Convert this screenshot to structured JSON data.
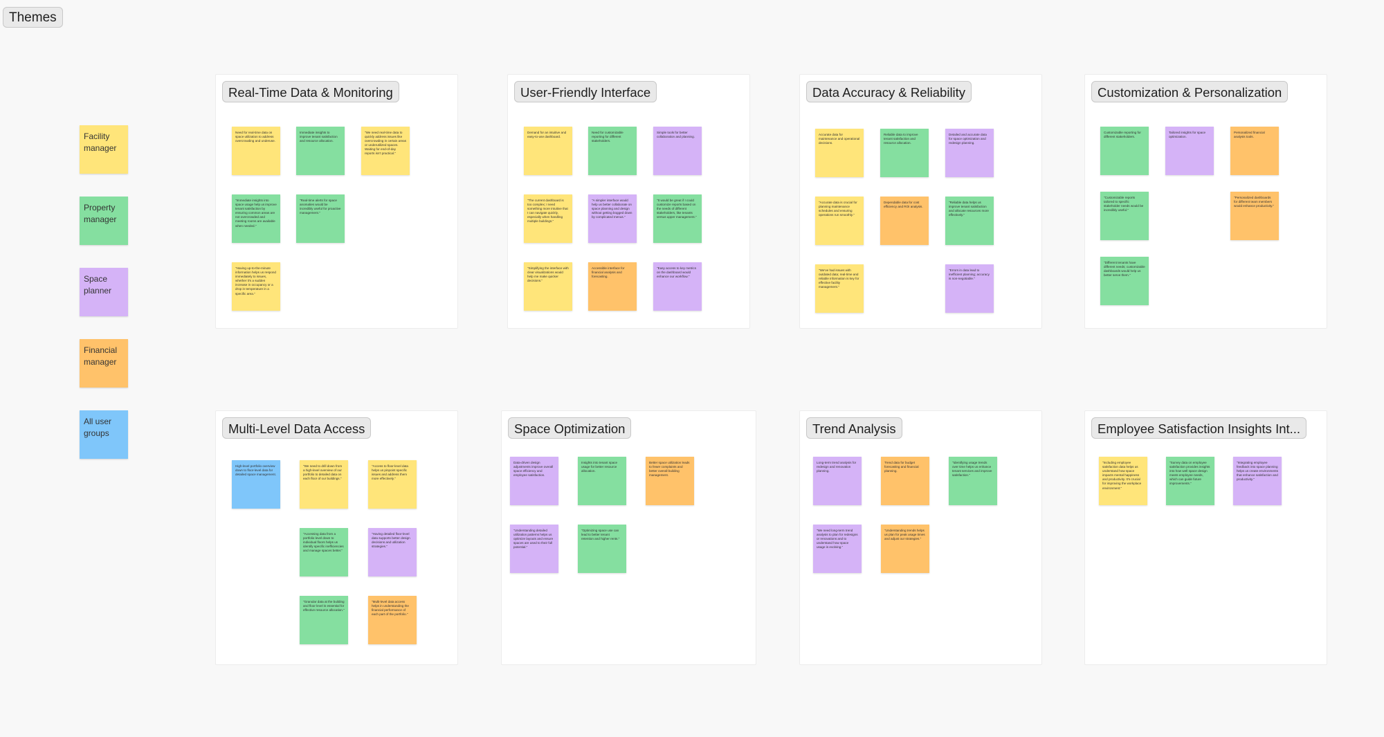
{
  "page": {
    "title": "Themes"
  },
  "colors": {
    "yellow": "#ffe57a",
    "green": "#85dfa0",
    "purple": "#d5b3f7",
    "orange": "#ffc26a",
    "blue": "#7fc6fa",
    "canvas": "#f8f8f8"
  },
  "legend": [
    {
      "label": "Facility manager",
      "color": "yellow"
    },
    {
      "label": "Property manager",
      "color": "green"
    },
    {
      "label": "Space planner",
      "color": "purple"
    },
    {
      "label": "Financial manager",
      "color": "orange"
    },
    {
      "label": "All user groups",
      "color": "blue"
    }
  ],
  "sections": [
    {
      "title": "Real-Time Data & Monitoring",
      "notes": [
        {
          "color": "yellow",
          "text": "Need for real-time data on space utilization to address overcrowding and underuse."
        },
        {
          "color": "green",
          "text": "Immediate insights to improve tenant satisfaction and resource allocation."
        },
        {
          "color": "yellow",
          "text": "\"We need real-time data to quickly address issues like overcrowding in certain areas or underutilized spaces. Waiting for end-of-day reports isn't practical.\""
        },
        {
          "color": "green",
          "text": "\"Immediate insights into space usage help us improve tenant satisfaction by ensuring common areas are not overcrowded and meeting rooms are available when needed.\""
        },
        {
          "color": "green",
          "text": "\"Real-time alerts for space anomalies would be incredibly useful for proactive management.\""
        },
        {
          "color": "yellow",
          "text": "\"Having up-to-the-minute information helps us respond immediately to issues, whether it's a sudden increase in occupancy or a drop in temperature in a specific area.\""
        }
      ]
    },
    {
      "title": "User-Friendly Interface",
      "notes": [
        {
          "color": "yellow",
          "text": "Demand for an intuitive and easy-to-use dashboard."
        },
        {
          "color": "green",
          "text": "Need for customizable reporting for different stakeholders."
        },
        {
          "color": "purple",
          "text": "Simple tools for better collaboration and planning."
        },
        {
          "color": "yellow",
          "text": "\"The current dashboard is too complex; I need something more intuitive that I can navigate quickly, especially when handling multiple buildings.\""
        },
        {
          "color": "purple",
          "text": "\"A simpler interface would help us better collaborate on space planning and design without getting bogged down by complicated menus.\""
        },
        {
          "color": "green",
          "text": "\"It would be great if I could customize reports based on the needs of different stakeholders, like tenants versus upper management.\""
        },
        {
          "color": "yellow",
          "text": "\"Simplifying the interface with clear visualizations would help me make quicker decisions.\""
        },
        {
          "color": "orange",
          "text": "Accessible interface for financial analysis and forecasting."
        },
        {
          "color": "purple",
          "text": "\"Easy access to key metrics on the dashboard would enhance our workflow.\""
        }
      ]
    },
    {
      "title": "Data Accuracy & Reliability",
      "notes": [
        {
          "color": "yellow",
          "text": "Accurate data for maintenance and operational decisions."
        },
        {
          "color": "green",
          "text": "Reliable data to improve tenant satisfaction and resource allocation."
        },
        {
          "color": "purple",
          "text": "Detailed and accurate data for space optimization and redesign planning."
        },
        {
          "color": "yellow",
          "text": "\"Accurate data is crucial for planning maintenance schedules and ensuring operations run smoothly.\""
        },
        {
          "color": "orange",
          "text": "Dependable data for cost efficiency and ROI analysis."
        },
        {
          "color": "green",
          "text": "\"Reliable data helps us improve tenant satisfaction and allocate resources more effectively.\""
        },
        {
          "color": "yellow",
          "text": "\"We've had issues with outdated data; real-time and reliable information is key for effective facility management.\""
        },
        {
          "color": "purple",
          "text": "\"Errors in data lead to inefficient planning; accuracy is non-negotiable.\""
        }
      ]
    },
    {
      "title": "Customization & Personalization",
      "notes": [
        {
          "color": "green",
          "text": "Customizable reporting for different stakeholders."
        },
        {
          "color": "purple",
          "text": "Tailored insights for space optimization."
        },
        {
          "color": "orange",
          "text": "Personalized financial analysis tools."
        },
        {
          "color": "green",
          "text": "\"Customizable reports tailored to specific stakeholder needs would be incredibly useful.\""
        },
        {
          "color": "orange",
          "text": "\"Personalized dashboards for different team members would enhance productivity.\""
        },
        {
          "color": "green",
          "text": "\"Different tenants have different needs; customizable dashboards would help us better serve them.\""
        }
      ]
    },
    {
      "title": "Multi-Level Data Access",
      "notes": [
        {
          "color": "blue",
          "text": "High-level portfolio overview down to floor-level data for detailed space management."
        },
        {
          "color": "yellow",
          "text": "\"We need to drill down from a high-level overview of our portfolio to detailed data on each floor of our buildings.\""
        },
        {
          "color": "yellow",
          "text": "\"Access to floor-level data helps us pinpoint specific issues and address them more effectively.\""
        },
        {
          "color": "green",
          "text": "\"Accessing data from a portfolio level down to individual floors helps us identify specific inefficiencies and manage spaces better.\""
        },
        {
          "color": "purple",
          "text": "\"Having detailed floor-level data supports better design decisions and utilization strategies.\""
        },
        {
          "color": "green",
          "text": "\"Granular data at the building and floor level is essential for effective resource allocation.\""
        },
        {
          "color": "orange",
          "text": "\"Multi-level data access helps in understanding the financial performance of each part of the portfolio.\""
        }
      ]
    },
    {
      "title": "Space Optimization",
      "notes": [
        {
          "color": "purple",
          "text": "Data-driven design adjustments improve overall space efficiency and employee satisfaction."
        },
        {
          "color": "green",
          "text": "Insights into tenant space usage for better resource allocation."
        },
        {
          "color": "orange",
          "text": "Better space utilization leads to fewer complaints and better overall building management."
        },
        {
          "color": "purple",
          "text": "\"Understanding detailed utilization patterns helps us optimize layouts and ensure spaces are used to their full potential.\""
        },
        {
          "color": "green",
          "text": "\"Optimizing space use can lead to better tenant retention and higher rents.\""
        }
      ]
    },
    {
      "title": "Trend Analysis",
      "notes": [
        {
          "color": "purple",
          "text": "Long-term trend analysis for redesign and renovation planning."
        },
        {
          "color": "orange",
          "text": "Trend data for budget forecasting and financial planning."
        },
        {
          "color": "green",
          "text": "\"Identifying usage trends over time helps us enhance tenant services and improve satisfaction.\""
        },
        {
          "color": "purple",
          "text": "\"We need long-term trend analysis to plan for redesigns or renovations and to understand how space usage is evolving.\""
        },
        {
          "color": "orange",
          "text": "\"Understanding trends helps us plan for peak usage times and adjust our strategies.\""
        }
      ]
    },
    {
      "title": "Employee Satisfaction Insights Int...",
      "notes": [
        {
          "color": "yellow",
          "text": "\"Including employee satisfaction data helps us understand how space impacts mental happiness and productivity. It's crucial for improving the workplace environment.\""
        },
        {
          "color": "green",
          "text": "\"Survey data on employee satisfaction provides insights into how well space design meets employee needs, which can guide future improvements.\""
        },
        {
          "color": "purple",
          "text": "\"Integrating employee feedback into space planning helps us create environments that enhance satisfaction and productivity.\""
        }
      ]
    }
  ]
}
